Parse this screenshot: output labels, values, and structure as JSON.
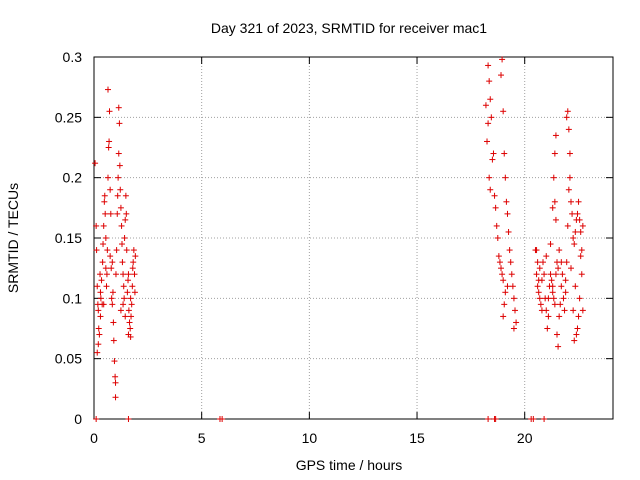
{
  "chart_data": {
    "type": "scatter",
    "title": "Day 321 of 2023, SRMTID for receiver mac1",
    "xlabel": "GPS time / hours",
    "ylabel": "SRMTID / TECUs",
    "xlim": [
      0,
      24.1
    ],
    "ylim": [
      0,
      0.3
    ],
    "x_ticks": [
      0,
      5,
      10,
      15,
      20
    ],
    "x_tick_labels": [
      "0",
      "5",
      "10",
      "15",
      "20"
    ],
    "y_ticks": [
      0,
      0.05,
      0.1,
      0.15,
      0.2,
      0.25,
      0.3
    ],
    "y_tick_labels": [
      "0",
      "0.05",
      "0.1",
      "0.15",
      "0.2",
      "0.25",
      "0.3"
    ],
    "grid": true,
    "marker": "+",
    "color": "#dd0000",
    "series": [
      {
        "name": "SRMTID",
        "points": [
          [
            0.05,
            0.212
          ],
          [
            0.1,
            0.16
          ],
          [
            0.12,
            0.14
          ],
          [
            0.15,
            0.11
          ],
          [
            0.18,
            0.095
          ],
          [
            0.2,
            0.09
          ],
          [
            0.22,
            0.075
          ],
          [
            0.25,
            0.07
          ],
          [
            0.15,
            0.055
          ],
          [
            0.2,
            0.062
          ],
          [
            0.28,
            0.12
          ],
          [
            0.3,
            0.105
          ],
          [
            0.32,
            0.1
          ],
          [
            0.35,
            0.115
          ],
          [
            0.38,
            0.095
          ],
          [
            0.4,
            0.13
          ],
          [
            0.42,
            0.145
          ],
          [
            0.45,
            0.16
          ],
          [
            0.48,
            0.18
          ],
          [
            0.5,
            0.185
          ],
          [
            0.52,
            0.17
          ],
          [
            0.55,
            0.15
          ],
          [
            0.58,
            0.11
          ],
          [
            0.6,
            0.12
          ],
          [
            0.62,
            0.14
          ],
          [
            0.65,
            0.2
          ],
          [
            0.68,
            0.225
          ],
          [
            0.7,
            0.23
          ],
          [
            0.72,
            0.255
          ],
          [
            0.65,
            0.273
          ],
          [
            0.75,
            0.19
          ],
          [
            0.78,
            0.17
          ],
          [
            0.8,
            0.125
          ],
          [
            0.82,
            0.1
          ],
          [
            0.85,
            0.095
          ],
          [
            0.88,
            0.105
          ],
          [
            0.9,
            0.08
          ],
          [
            0.92,
            0.065
          ],
          [
            0.95,
            0.048
          ],
          [
            0.98,
            0.035
          ],
          [
            1.0,
            0.03
          ],
          [
            1.0,
            0.018
          ],
          [
            1.02,
            0.12
          ],
          [
            1.05,
            0.14
          ],
          [
            1.08,
            0.17
          ],
          [
            1.1,
            0.185
          ],
          [
            1.12,
            0.2
          ],
          [
            1.15,
            0.22
          ],
          [
            1.18,
            0.245
          ],
          [
            1.15,
            0.258
          ],
          [
            1.2,
            0.21
          ],
          [
            1.22,
            0.19
          ],
          [
            1.25,
            0.175
          ],
          [
            1.28,
            0.16
          ],
          [
            1.3,
            0.145
          ],
          [
            1.32,
            0.13
          ],
          [
            1.35,
            0.12
          ],
          [
            1.38,
            0.11
          ],
          [
            1.4,
            0.1
          ],
          [
            1.42,
            0.15
          ],
          [
            1.45,
            0.165
          ],
          [
            1.48,
            0.185
          ],
          [
            1.5,
            0.17
          ],
          [
            1.52,
            0.14
          ],
          [
            1.55,
            0.105
          ],
          [
            1.58,
            0.115
          ],
          [
            1.6,
            0.12
          ],
          [
            1.62,
            0.09
          ],
          [
            1.65,
            0.08
          ],
          [
            1.68,
            0.075
          ],
          [
            1.7,
            0.068
          ],
          [
            1.72,
            0.085
          ],
          [
            1.75,
            0.095
          ],
          [
            1.78,
            0.11
          ],
          [
            1.8,
            0.125
          ],
          [
            1.82,
            0.13
          ],
          [
            1.85,
            0.14
          ],
          [
            1.88,
            0.12
          ],
          [
            1.9,
            0.105
          ],
          [
            1.92,
            0.135
          ],
          [
            0.3,
            0.085
          ],
          [
            0.45,
            0.095
          ],
          [
            0.55,
            0.125
          ],
          [
            0.75,
            0.135
          ],
          [
            0.85,
            0.13
          ],
          [
            1.25,
            0.09
          ],
          [
            1.35,
            0.095
          ],
          [
            1.45,
            0.085
          ],
          [
            1.6,
            0.07
          ],
          [
            1.7,
            0.1
          ],
          [
            0.1,
            0.0
          ],
          [
            1.6,
            0.0
          ],
          [
            5.85,
            0.0
          ],
          [
            5.95,
            0.0
          ],
          [
            18.2,
            0.26
          ],
          [
            18.25,
            0.23
          ],
          [
            18.3,
            0.245
          ],
          [
            18.35,
            0.2
          ],
          [
            18.4,
            0.19
          ],
          [
            18.3,
            0.293
          ],
          [
            18.35,
            0.28
          ],
          [
            18.4,
            0.265
          ],
          [
            18.45,
            0.25
          ],
          [
            18.5,
            0.215
          ],
          [
            18.55,
            0.22
          ],
          [
            18.6,
            0.185
          ],
          [
            18.65,
            0.175
          ],
          [
            18.7,
            0.16
          ],
          [
            18.75,
            0.15
          ],
          [
            18.8,
            0.135
          ],
          [
            18.85,
            0.13
          ],
          [
            18.9,
            0.125
          ],
          [
            18.95,
            0.12
          ],
          [
            19.0,
            0.115
          ],
          [
            18.95,
            0.298
          ],
          [
            18.9,
            0.285
          ],
          [
            19.0,
            0.255
          ],
          [
            19.05,
            0.22
          ],
          [
            19.1,
            0.2
          ],
          [
            19.15,
            0.18
          ],
          [
            19.2,
            0.17
          ],
          [
            19.25,
            0.155
          ],
          [
            19.3,
            0.14
          ],
          [
            19.35,
            0.13
          ],
          [
            19.4,
            0.12
          ],
          [
            19.45,
            0.11
          ],
          [
            19.5,
            0.1
          ],
          [
            19.55,
            0.09
          ],
          [
            19.6,
            0.08
          ],
          [
            19.5,
            0.075
          ],
          [
            19.0,
            0.085
          ],
          [
            19.05,
            0.095
          ],
          [
            19.1,
            0.105
          ],
          [
            19.2,
            0.11
          ],
          [
            18.3,
            0.0
          ],
          [
            18.6,
            0.0
          ],
          [
            18.65,
            0.0
          ],
          [
            20.3,
            0.0
          ],
          [
            20.4,
            0.0
          ],
          [
            20.9,
            0.0
          ],
          [
            20.5,
            0.14
          ],
          [
            20.55,
            0.12
          ],
          [
            20.6,
            0.11
          ],
          [
            20.65,
            0.105
          ],
          [
            20.7,
            0.1
          ],
          [
            20.75,
            0.095
          ],
          [
            20.8,
            0.115
          ],
          [
            20.85,
            0.13
          ],
          [
            20.9,
            0.12
          ],
          [
            20.95,
            0.1
          ],
          [
            21.0,
            0.09
          ],
          [
            21.05,
            0.075
          ],
          [
            21.1,
            0.085
          ],
          [
            21.15,
            0.11
          ],
          [
            21.2,
            0.12
          ],
          [
            21.25,
            0.115
          ],
          [
            21.3,
            0.105
          ],
          [
            21.35,
            0.1
          ],
          [
            21.4,
            0.095
          ],
          [
            21.45,
            0.12
          ],
          [
            21.5,
            0.13
          ],
          [
            21.55,
            0.125
          ],
          [
            21.6,
            0.14
          ],
          [
            21.45,
            0.165
          ],
          [
            21.4,
            0.18
          ],
          [
            21.35,
            0.2
          ],
          [
            21.4,
            0.22
          ],
          [
            21.45,
            0.235
          ],
          [
            21.3,
            0.175
          ],
          [
            21.5,
            0.07
          ],
          [
            21.55,
            0.06
          ],
          [
            21.6,
            0.085
          ],
          [
            21.65,
            0.095
          ],
          [
            21.7,
            0.11
          ],
          [
            21.75,
            0.12
          ],
          [
            21.8,
            0.1
          ],
          [
            21.85,
            0.09
          ],
          [
            21.9,
            0.115
          ],
          [
            21.95,
            0.13
          ],
          [
            22.0,
            0.16
          ],
          [
            22.05,
            0.19
          ],
          [
            22.1,
            0.22
          ],
          [
            21.95,
            0.25
          ],
          [
            22.0,
            0.255
          ],
          [
            22.05,
            0.24
          ],
          [
            22.1,
            0.2
          ],
          [
            22.15,
            0.18
          ],
          [
            22.2,
            0.17
          ],
          [
            22.25,
            0.15
          ],
          [
            22.3,
            0.145
          ],
          [
            22.35,
            0.155
          ],
          [
            22.4,
            0.165
          ],
          [
            22.45,
            0.17
          ],
          [
            22.5,
            0.18
          ],
          [
            22.55,
            0.165
          ],
          [
            22.6,
            0.155
          ],
          [
            22.65,
            0.14
          ],
          [
            22.7,
            0.09
          ],
          [
            22.5,
            0.085
          ],
          [
            22.4,
            0.07
          ],
          [
            22.3,
            0.065
          ],
          [
            22.45,
            0.075
          ],
          [
            22.55,
            0.1
          ],
          [
            22.65,
            0.12
          ],
          [
            22.6,
            0.135
          ],
          [
            20.6,
            0.13
          ],
          [
            20.7,
            0.125
          ],
          [
            20.8,
            0.09
          ],
          [
            21.0,
            0.135
          ],
          [
            21.2,
            0.145
          ],
          [
            20.55,
            0.14
          ],
          [
            20.65,
            0.115
          ],
          [
            21.1,
            0.1
          ],
          [
            21.3,
            0.11
          ],
          [
            21.7,
            0.13
          ],
          [
            21.9,
            0.105
          ],
          [
            22.15,
            0.125
          ],
          [
            22.25,
            0.09
          ],
          [
            22.35,
            0.11
          ],
          [
            22.7,
            0.16
          ]
        ]
      }
    ]
  }
}
